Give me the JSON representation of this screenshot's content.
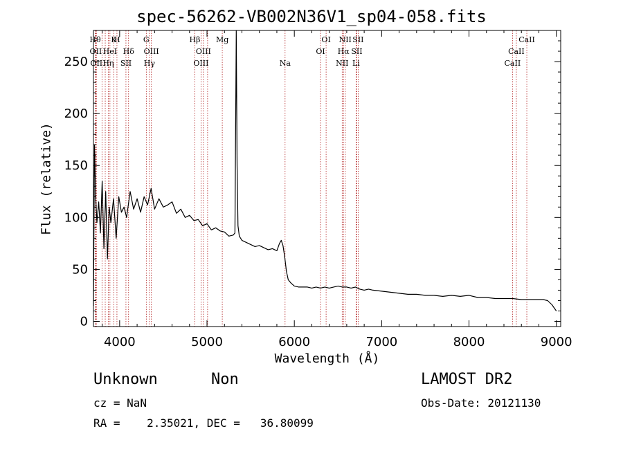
{
  "title": "spec-56262-VB002N36V1_sp04-058.fits",
  "footer": {
    "class": "Unknown",
    "subclass": "Non",
    "survey": "LAMOST DR2",
    "cz": "cz = NaN",
    "obs_date": "Obs-Date: 20121130",
    "radec": "RA =    2.35021, DEC =   36.80099"
  },
  "chart_data": {
    "type": "line",
    "title": "spec-56262-VB002N36V1_sp04-058.fits",
    "xlabel": "Wavelength (Å)",
    "ylabel": "Flux (relative)",
    "xlim": [
      3700,
      9050
    ],
    "ylim": [
      -5,
      280
    ],
    "xticks": [
      4000,
      5000,
      6000,
      7000,
      8000,
      9000
    ],
    "yticks": [
      0,
      50,
      100,
      150,
      200,
      250
    ],
    "grid": false,
    "line_color": "#000000",
    "marker_color": "#b22222",
    "series": [
      {
        "x": [
          3700,
          3712,
          3725,
          3740,
          3760,
          3780,
          3800,
          3820,
          3840,
          3860,
          3880,
          3900,
          3930,
          3960,
          3990,
          4020,
          4050,
          4080,
          4120,
          4160,
          4200,
          4240,
          4280,
          4320,
          4360,
          4400,
          4450,
          4500,
          4550,
          4600,
          4650,
          4700,
          4750,
          4800,
          4850,
          4900,
          4950,
          5000,
          5050,
          5100,
          5150,
          5200,
          5250,
          5300,
          5320,
          5335,
          5345,
          5355,
          5370,
          5400,
          5450,
          5500,
          5550,
          5600,
          5650,
          5700,
          5750,
          5800,
          5830,
          5850,
          5870,
          5890,
          5910,
          5930,
          5960,
          6000,
          6050,
          6100,
          6150,
          6200,
          6250,
          6300,
          6350,
          6400,
          6450,
          6500,
          6550,
          6600,
          6650,
          6700,
          6750,
          6800,
          6850,
          6900,
          7000,
          7100,
          7200,
          7300,
          7400,
          7500,
          7600,
          7700,
          7800,
          7900,
          8000,
          8100,
          8200,
          8300,
          8400,
          8500,
          8600,
          8700,
          8800,
          8850,
          8900,
          8950,
          9000
        ],
        "y": [
          15,
          170,
          120,
          95,
          115,
          85,
          135,
          70,
          125,
          60,
          110,
          95,
          118,
          80,
          120,
          105,
          110,
          100,
          125,
          108,
          118,
          105,
          120,
          112,
          128,
          108,
          118,
          110,
          112,
          115,
          104,
          108,
          100,
          102,
          97,
          98,
          92,
          94,
          88,
          90,
          87,
          86,
          82,
          83,
          85,
          280,
          150,
          92,
          82,
          78,
          76,
          74,
          72,
          73,
          71,
          69,
          70,
          68,
          75,
          78,
          73,
          62,
          48,
          40,
          37,
          34,
          33,
          33,
          33,
          32,
          33,
          32,
          33,
          32,
          33,
          34,
          33,
          33,
          32,
          33,
          31,
          30,
          31,
          30,
          29,
          28,
          27,
          26,
          26,
          25,
          25,
          24,
          25,
          24,
          25,
          23,
          23,
          22,
          22,
          22,
          21,
          21,
          21,
          21,
          20,
          16,
          10
        ]
      }
    ],
    "lines": [
      {
        "x": 3720,
        "label": "Hθ",
        "row": 1
      },
      {
        "x": 3727,
        "label": "OII",
        "row": 2
      },
      {
        "x": 3734,
        "label": "OII",
        "row": 3
      },
      {
        "x": 3798,
        "label": "",
        "row": 0
      },
      {
        "x": 3835,
        "label": "",
        "row": 0
      },
      {
        "x": 3889,
        "label": "HeI",
        "row": 2
      },
      {
        "x": 3870,
        "label": "Hη",
        "row": 3
      },
      {
        "x": 3934,
        "label": "K",
        "row": 1
      },
      {
        "x": 3969,
        "label": "H",
        "row": 1
      },
      {
        "x": 4072,
        "label": "SII",
        "row": 3
      },
      {
        "x": 4102,
        "label": "Hδ",
        "row": 2
      },
      {
        "x": 4305,
        "label": "G",
        "row": 1
      },
      {
        "x": 4341,
        "label": "Hγ",
        "row": 3
      },
      {
        "x": 4363,
        "label": "OIII",
        "row": 2
      },
      {
        "x": 4861,
        "label": "Hβ",
        "row": 1
      },
      {
        "x": 4932,
        "label": "OIII",
        "row": 3
      },
      {
        "x": 4959,
        "label": "OIII",
        "row": 2
      },
      {
        "x": 5007,
        "label": "",
        "row": 0
      },
      {
        "x": 5175,
        "label": "Mg",
        "row": 1
      },
      {
        "x": 5894,
        "label": "Na",
        "row": 3
      },
      {
        "x": 6300,
        "label": "OI",
        "row": 2
      },
      {
        "x": 6364,
        "label": "OI",
        "row": 1
      },
      {
        "x": 6548,
        "label": "NII",
        "row": 3
      },
      {
        "x": 6563,
        "label": "Hα",
        "row": 2
      },
      {
        "x": 6583,
        "label": "NII",
        "row": 1
      },
      {
        "x": 6707,
        "label": "Li",
        "row": 3
      },
      {
        "x": 6716,
        "label": "SII",
        "row": 2
      },
      {
        "x": 6731,
        "label": "SII",
        "row": 1
      },
      {
        "x": 8498,
        "label": "CaII",
        "row": 3
      },
      {
        "x": 8542,
        "label": "CaII",
        "row": 2
      },
      {
        "x": 8662,
        "label": "CaII",
        "row": 1
      }
    ]
  }
}
